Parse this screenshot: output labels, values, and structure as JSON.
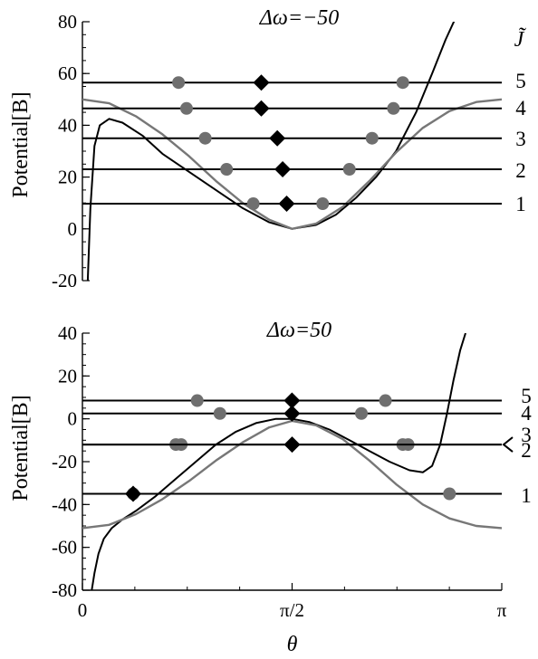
{
  "chart_data": [
    {
      "type": "line",
      "title": "Δω=−50",
      "ylabel": "Potential[B]",
      "xlabel": "",
      "legend_label": "J̃",
      "xlim": [
        0,
        3.14159
      ],
      "ylim": [
        -20,
        80
      ],
      "ytick_labels": [
        "-20",
        "0",
        "20",
        "40",
        "60",
        "80"
      ],
      "yticks": [
        -20,
        0,
        20,
        40,
        60,
        80
      ],
      "curves": [
        {
          "name": "",
          "color": "#000000",
          "x": [
            0.04,
            0.06,
            0.09,
            0.13,
            0.2,
            0.3,
            0.45,
            0.6,
            0.8,
            1.0,
            1.2,
            1.4,
            1.57,
            1.75,
            1.9,
            2.05,
            2.2,
            2.35,
            2.5,
            2.62,
            2.72,
            2.8
          ],
          "y": [
            -20,
            8,
            32,
            40,
            42.5,
            41,
            36,
            29,
            22,
            15,
            8,
            2.5,
            0,
            1.5,
            5.5,
            12,
            20,
            30,
            45,
            60,
            73,
            82
          ]
        },
        {
          "name": "",
          "color": "#777777",
          "x": [
            0,
            0.2,
            0.4,
            0.6,
            0.8,
            1.0,
            1.2,
            1.4,
            1.57,
            1.75,
            1.95,
            2.15,
            2.35,
            2.55,
            2.75,
            2.95,
            3.14159
          ],
          "y": [
            50,
            48.5,
            43.5,
            36.5,
            28,
            18.5,
            10,
            3.5,
            0,
            2,
            8.5,
            18.5,
            29.5,
            39,
            45.5,
            49,
            50
          ]
        }
      ],
      "levels": [
        {
          "label": "1",
          "y": 9.7,
          "diamond_x": 1.53,
          "dots_x": [
            1.28,
            1.8
          ]
        },
        {
          "label": "2",
          "y": 23.0,
          "diamond_x": 1.5,
          "dots_x": [
            1.08,
            2.0
          ]
        },
        {
          "label": "3",
          "y": 35.0,
          "diamond_x": 1.46,
          "dots_x": [
            0.92,
            2.17
          ]
        },
        {
          "label": "4",
          "y": 46.5,
          "diamond_x": 1.34,
          "dots_x": [
            0.78,
            2.33
          ]
        },
        {
          "label": "5",
          "y": 56.5,
          "diamond_x": 1.34,
          "dots_x": [
            0.72,
            2.4
          ]
        }
      ]
    },
    {
      "type": "line",
      "title": "Δω=50",
      "ylabel": "Potential[B]",
      "xlabel": "θ",
      "xlim": [
        0,
        3.14159
      ],
      "ylim": [
        -80,
        40
      ],
      "xticks": [
        0,
        1.5708,
        3.14159
      ],
      "xtick_labels": [
        "0",
        "π/2",
        "π"
      ],
      "yticks": [
        -80,
        -60,
        -40,
        -20,
        0,
        20,
        40
      ],
      "ytick_labels": [
        "-80",
        "-60",
        "-40",
        "-20",
        "0",
        "20",
        "40"
      ],
      "curves": [
        {
          "name": "",
          "color": "#000000",
          "x": [
            0.07,
            0.09,
            0.12,
            0.16,
            0.22,
            0.3,
            0.4,
            0.55,
            0.7,
            0.85,
            1.0,
            1.15,
            1.3,
            1.45,
            1.57,
            1.7,
            1.85,
            2.0,
            2.15,
            2.3,
            2.45,
            2.55,
            2.62,
            2.68,
            2.73,
            2.78,
            2.83,
            2.87
          ],
          "y": [
            -80,
            -72,
            -63,
            -56,
            -51,
            -47,
            -43,
            -36,
            -28,
            -20,
            -12,
            -6,
            -2,
            0,
            0,
            -1.5,
            -5,
            -10,
            -15,
            -20,
            -24,
            -25,
            -22,
            -12,
            2,
            18,
            32,
            40
          ]
        },
        {
          "name": "",
          "color": "#777777",
          "x": [
            0,
            0.2,
            0.4,
            0.6,
            0.8,
            1.0,
            1.2,
            1.4,
            1.57,
            1.75,
            1.95,
            2.15,
            2.35,
            2.55,
            2.75,
            2.95,
            3.14159
          ],
          "y": [
            -51,
            -49.5,
            -44.5,
            -37.5,
            -29,
            -19.5,
            -11,
            -4,
            -1,
            -3,
            -9.5,
            -19.5,
            -30.5,
            -40,
            -46.5,
            -50,
            -51
          ]
        }
      ],
      "levels": [
        {
          "label": "1",
          "y": -35,
          "diamond_x": 0.38,
          "dots_x": [
            0.38,
            2.75
          ]
        },
        {
          "label": "2",
          "y": -12,
          "diamond_x": 1.5708,
          "dots_x": [
            0.7,
            0.74,
            2.4,
            2.44
          ]
        },
        {
          "label": "3",
          "y": -12,
          "diamond_x": 1.5708,
          "dots_x": []
        },
        {
          "label": "4",
          "y": 2.5,
          "diamond_x": 1.57,
          "dots_x": [
            1.03,
            2.09
          ]
        },
        {
          "label": "5",
          "y": 8.5,
          "diamond_x": 1.57,
          "dots_x": [
            0.86,
            2.27
          ]
        }
      ]
    }
  ]
}
